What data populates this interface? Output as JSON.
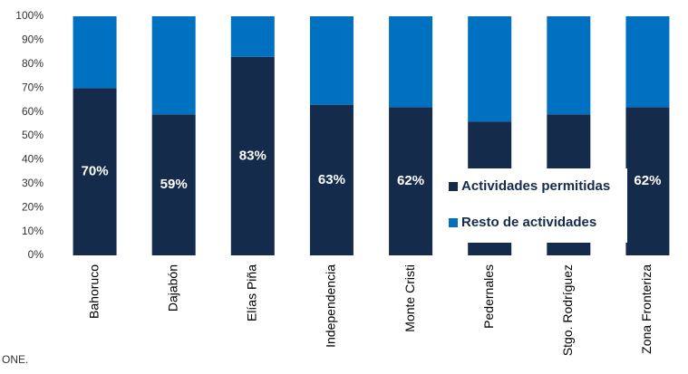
{
  "chart_data": {
    "type": "stacked_bar",
    "categories": [
      "Bahoruco",
      "Dajabón",
      "Elías Piña",
      "Independencia",
      "Monte Cristi",
      "Pedernales",
      "Stgo. Rodríguez",
      "Zona Fronteriza"
    ],
    "series": [
      {
        "name": "Actividades permitidas",
        "color": "#142b4b",
        "values": [
          70,
          59,
          83,
          63,
          62,
          56,
          59,
          62
        ],
        "value_labels": [
          "70%",
          "59%",
          "83%",
          "63%",
          "62%",
          "56%",
          "59%",
          "62%"
        ]
      },
      {
        "name": "Resto de actividades",
        "color": "#0070c0",
        "values": [
          30,
          41,
          17,
          37,
          38,
          44,
          41,
          38
        ]
      }
    ],
    "ylim": [
      0,
      100
    ],
    "yticks": [
      {
        "value": 0,
        "label": "0%"
      },
      {
        "value": 10,
        "label": "10%"
      },
      {
        "value": 20,
        "label": "20%"
      },
      {
        "value": 30,
        "label": "30%"
      },
      {
        "value": 40,
        "label": "40%"
      },
      {
        "value": 50,
        "label": "50%"
      },
      {
        "value": 60,
        "label": "60%"
      },
      {
        "value": 70,
        "label": "70%"
      },
      {
        "value": 80,
        "label": "80%"
      },
      {
        "value": 90,
        "label": "90%"
      },
      {
        "value": 100,
        "label": "100%"
      }
    ],
    "source": "ONE."
  }
}
